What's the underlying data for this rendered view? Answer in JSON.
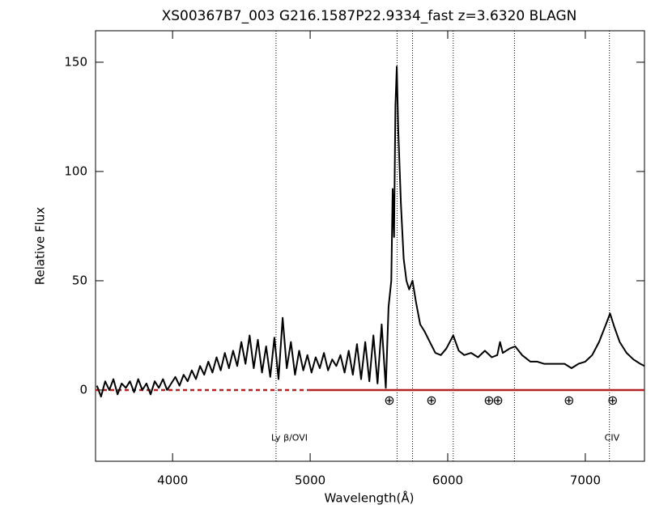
{
  "chart_data": {
    "type": "line",
    "title": "XS00367B7_003  G216.1587P22.9334_fast  z=3.6320  BLAGN",
    "xlabel": "Wavelength(Å)",
    "ylabel": "Relative Flux",
    "xlim": [
      3440,
      7430
    ],
    "ylim": [
      -32.6,
      164.4
    ],
    "xticks": [
      4000,
      5000,
      6000,
      7000
    ],
    "yticks": [
      0,
      50,
      100,
      150
    ],
    "series": [
      {
        "color": "#000000",
        "x": [
          3450,
          3480,
          3510,
          3540,
          3570,
          3600,
          3630,
          3660,
          3690,
          3720,
          3750,
          3780,
          3810,
          3840,
          3870,
          3900,
          3930,
          3960,
          3990,
          4020,
          4050,
          4080,
          4110,
          4140,
          4170,
          4200,
          4230,
          4260,
          4290,
          4320,
          4350,
          4380,
          4410,
          4440,
          4470,
          4500,
          4530,
          4560,
          4590,
          4620,
          4650,
          4680,
          4710,
          4740,
          4770,
          4800,
          4830,
          4860,
          4890,
          4920,
          4950,
          4980,
          5010,
          5040,
          5070,
          5100,
          5130,
          5160,
          5190,
          5220,
          5250,
          5280,
          5310,
          5340,
          5370,
          5400,
          5430,
          5460,
          5490,
          5520,
          5550,
          5570,
          5590,
          5600,
          5610,
          5620,
          5630,
          5640,
          5660,
          5680,
          5700,
          5720,
          5744,
          5770,
          5800,
          5830,
          5870,
          5910,
          5950,
          5990,
          6040,
          6080,
          6120,
          6170,
          6220,
          6270,
          6320,
          6360,
          6380,
          6400,
          6450,
          6490,
          6540,
          6600,
          6650,
          6700,
          6750,
          6800,
          6850,
          6900,
          6950,
          7000,
          7050,
          7100,
          7150,
          7180,
          7210,
          7250,
          7300,
          7350,
          7400,
          7430
        ],
        "values": [
          2,
          -3,
          4,
          0,
          5,
          -2,
          3,
          1,
          4,
          -1,
          5,
          0,
          3,
          -2,
          4,
          1,
          5,
          0,
          3,
          6,
          2,
          7,
          4,
          9,
          5,
          11,
          7,
          13,
          8,
          15,
          9,
          17,
          10,
          18,
          11,
          22,
          12,
          25,
          10,
          23,
          8,
          20,
          6,
          24,
          5,
          33,
          10,
          22,
          7,
          18,
          9,
          16,
          8,
          15,
          10,
          17,
          9,
          14,
          11,
          16,
          8,
          18,
          7,
          21,
          5,
          22,
          4,
          25,
          3,
          30,
          1,
          38,
          50,
          92,
          70,
          130,
          148,
          120,
          85,
          60,
          50,
          46,
          50,
          40,
          30,
          27,
          22,
          17,
          16,
          19,
          25,
          18,
          16,
          17,
          15,
          18,
          15,
          16,
          22,
          17,
          19,
          20,
          16,
          13,
          13,
          12,
          12,
          12,
          12,
          10,
          12,
          13,
          16,
          22,
          30,
          35,
          29,
          22,
          17,
          14,
          12,
          11
        ]
      }
    ],
    "zero_line": {
      "y": 0,
      "color": "#b22222",
      "dashed_x": [
        3440,
        4990
      ],
      "solid_x": [
        4990,
        7430
      ]
    },
    "line_marks": [
      {
        "x": 4752,
        "label": "Ly β/OVI"
      },
      {
        "x": 5632
      },
      {
        "x": 5744
      },
      {
        "x": 6040
      },
      {
        "x": 6485
      },
      {
        "x": 7175,
        "label": "CIV"
      }
    ],
    "telluric": {
      "symbol": "⊕",
      "y": -5,
      "x": [
        5576,
        5882,
        6300,
        6365,
        6882,
        7199
      ]
    }
  }
}
